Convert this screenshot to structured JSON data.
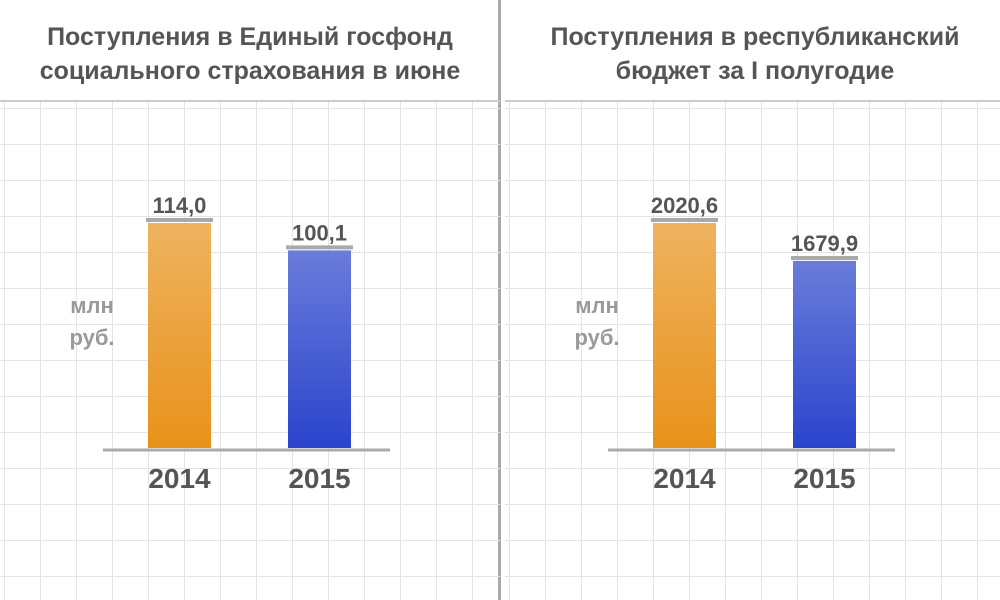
{
  "chart_data": [
    {
      "type": "bar",
      "title": "Поступления в Единый госфонд социального страхования в июне",
      "y_label": "млн руб.",
      "categories": [
        "2014",
        "2015"
      ],
      "values": [
        114.0,
        100.1
      ],
      "value_labels": [
        "114,0",
        "100,1"
      ],
      "colors": [
        "#e8921a",
        "#2a44cc"
      ]
    },
    {
      "type": "bar",
      "title": "Поступления в республиканский бюджет за I полугодие",
      "y_label": "млн руб.",
      "categories": [
        "2014",
        "2015"
      ],
      "values": [
        2020.6,
        1679.9
      ],
      "value_labels": [
        "2020,6",
        "1679,9"
      ],
      "colors": [
        "#e8921a",
        "#2a44cc"
      ]
    }
  ]
}
